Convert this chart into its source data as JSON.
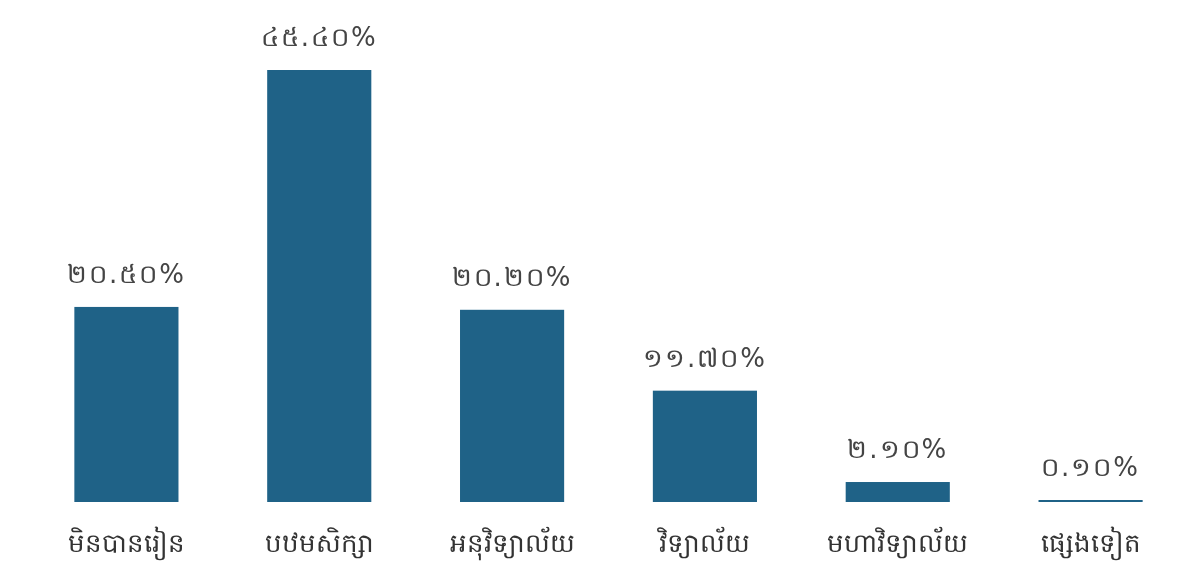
{
  "chart_data": {
    "type": "bar",
    "categories": [
      "មិនបានរៀន",
      "បឋមសិក្សា",
      "អនុវិទ្យាល័យ",
      "វិទ្យាល័យ",
      "មហាវិទ្យាល័យ",
      "ផ្សេងទៀត"
    ],
    "values": [
      20.5,
      45.4,
      20.2,
      11.7,
      2.1,
      0.1
    ],
    "value_labels": [
      "២០.៥០%",
      "៤៥.៤០%",
      "២០.២០%",
      "១១.៧០%",
      "២.១០%",
      "០.១០%"
    ],
    "color": "#1f6287"
  }
}
